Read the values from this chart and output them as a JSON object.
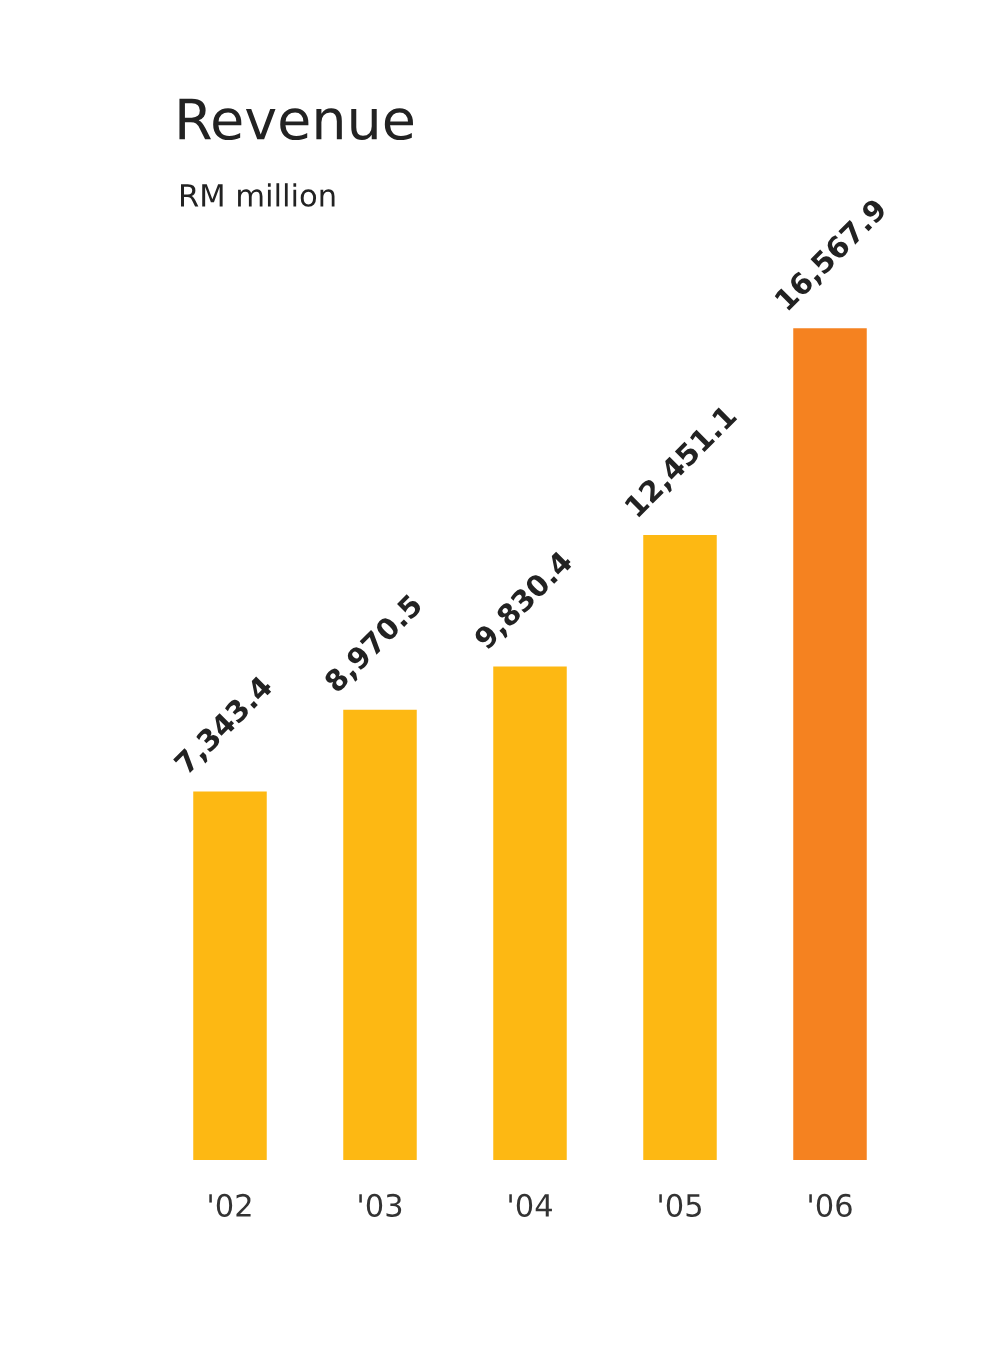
{
  "chart_data": {
    "type": "bar",
    "title": "Revenue",
    "subtitle": "RM million",
    "categories": [
      "'02",
      "'03",
      "'04",
      "'05",
      "'06"
    ],
    "values": [
      7343.4,
      8970.5,
      9830.4,
      12451.1,
      16567.9
    ],
    "colors": [
      "#fdb813",
      "#fdb813",
      "#fdb813",
      "#fdb813",
      "#f58220"
    ],
    "value_labels": [
      "7,343.4",
      "8,970.5",
      "9,830.4",
      "12,451.1",
      "16,567.9"
    ],
    "grid": false,
    "legend": false
  }
}
